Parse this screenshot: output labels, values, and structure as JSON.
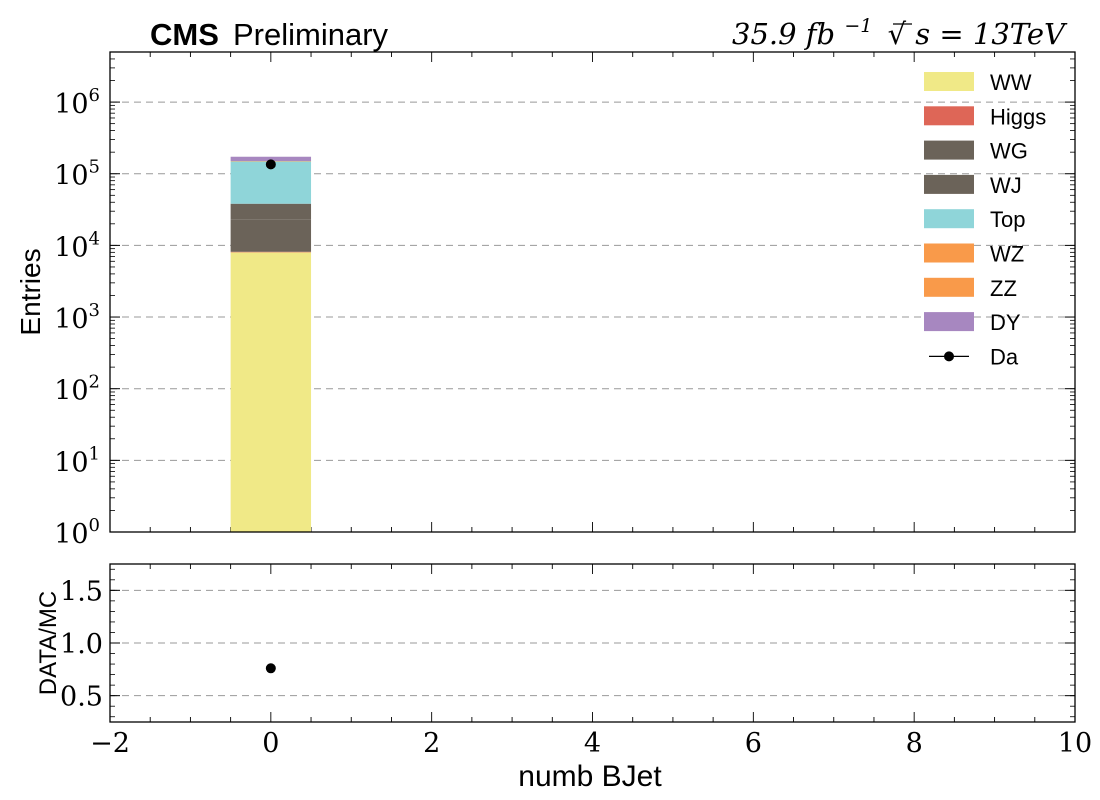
{
  "header": {
    "experiment": "CMS",
    "status": "Preliminary",
    "lumi_prefix": "35.9",
    "lumi_unit": "fb",
    "lumi_exp": "−1",
    "sqrt_symbol": "√",
    "energy_text": "s = 13TeV"
  },
  "chart_data": [
    {
      "type": "bar",
      "stacked": true,
      "panel": "main",
      "ylabel": "Entries",
      "xlim": [
        -2,
        10
      ],
      "ylim": [
        1,
        5000000
      ],
      "yscale": "log",
      "yticks": [
        {
          "base": "10",
          "exp": "0"
        },
        {
          "base": "10",
          "exp": "1"
        },
        {
          "base": "10",
          "exp": "2"
        },
        {
          "base": "10",
          "exp": "3"
        },
        {
          "base": "10",
          "exp": "4"
        },
        {
          "base": "10",
          "exp": "5"
        },
        {
          "base": "10",
          "exp": "6"
        }
      ],
      "grid": true,
      "legend_position": "top-right",
      "bin_centers": [
        0
      ],
      "bin_width": 1,
      "series": [
        {
          "name": "WW",
          "color": "#f0e987",
          "values": [
            8000
          ]
        },
        {
          "name": "Higgs",
          "color": "#de6657",
          "values": [
            150
          ]
        },
        {
          "name": "WG",
          "color": "#6b6359",
          "values": [
            15000
          ]
        },
        {
          "name": "WJ",
          "color": "#6b6359",
          "values": [
            15000
          ]
        },
        {
          "name": "Top",
          "color": "#8fd5d9",
          "values": [
            110000
          ]
        },
        {
          "name": "WZ",
          "color": "#f99a4a",
          "values": [
            1000
          ]
        },
        {
          "name": "ZZ",
          "color": "#f99a4a",
          "values": [
            1500
          ]
        },
        {
          "name": "DY",
          "color": "#a787c0",
          "values": [
            22000
          ]
        }
      ],
      "data_points": {
        "name": "Da",
        "x": [
          0
        ],
        "y": [
          135000
        ]
      }
    },
    {
      "type": "scatter",
      "panel": "ratio",
      "ylabel": "DATA/MC",
      "xlabel": "numb BJet",
      "xlim": [
        -2,
        10
      ],
      "ylim": [
        0.25,
        1.75
      ],
      "grid": true,
      "xticks": [
        "−2",
        "0",
        "2",
        "4",
        "6",
        "8",
        "10"
      ],
      "yticks": [
        "0.5",
        "1.0",
        "1.5"
      ],
      "x": [
        0
      ],
      "y": [
        0.76
      ]
    }
  ]
}
